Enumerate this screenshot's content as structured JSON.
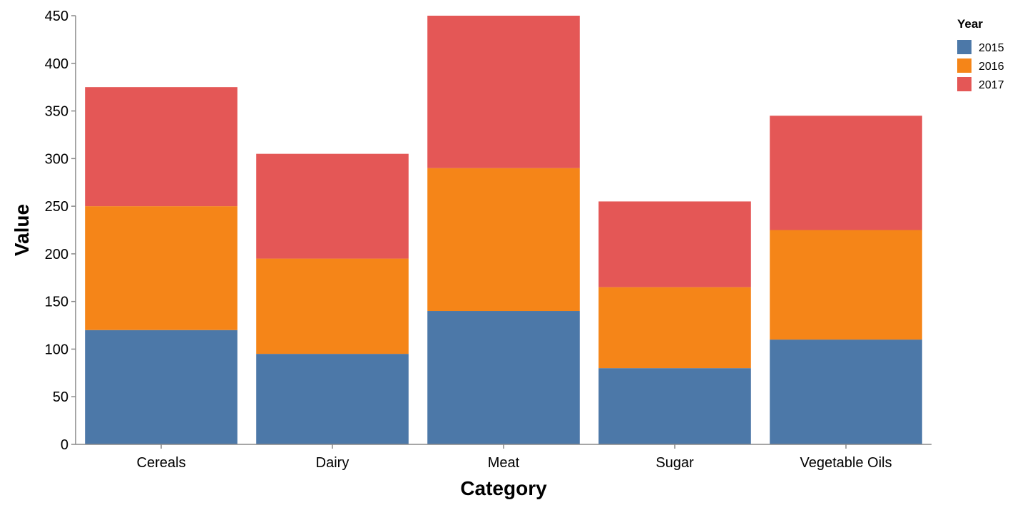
{
  "chart_data": {
    "type": "bar",
    "stacked": true,
    "categories": [
      "Cereals",
      "Dairy",
      "Meat",
      "Sugar",
      "Vegetable Oils"
    ],
    "series": [
      {
        "name": "2015",
        "color": "#4c78a8",
        "values": [
          120,
          95,
          140,
          80,
          110
        ]
      },
      {
        "name": "2016",
        "color": "#f58518",
        "values": [
          130,
          100,
          150,
          85,
          115
        ]
      },
      {
        "name": "2017",
        "color": "#e45756",
        "values": [
          125,
          110,
          160,
          90,
          120
        ]
      }
    ],
    "xlabel": "Category",
    "ylabel": "Value",
    "ylim": [
      0,
      450
    ],
    "yticks": [
      0,
      50,
      100,
      150,
      200,
      250,
      300,
      350,
      400,
      450
    ],
    "legend": {
      "title": "Year",
      "placement": "top-right"
    },
    "grid": false
  }
}
